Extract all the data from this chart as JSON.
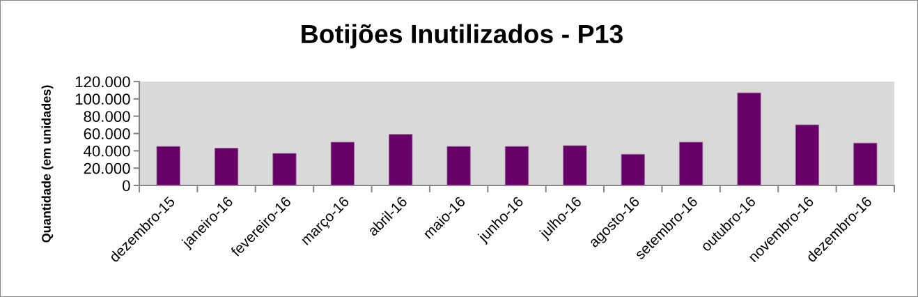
{
  "chart_data": {
    "type": "bar",
    "title": "Botijões Inutilizados - P13",
    "ylabel": "Quantidade (em unidades)",
    "categories": [
      "dezembro-15",
      "janeiro-16",
      "fevereiro-16",
      "março-16",
      "abril-16",
      "maio-16",
      "junho-16",
      "julho-16",
      "agosto-16",
      "setembro-16",
      "outubro-16",
      "novembro-16",
      "dezembro-16"
    ],
    "values": [
      45000,
      43000,
      37000,
      50000,
      59000,
      45000,
      45000,
      46000,
      36000,
      50000,
      107000,
      70000,
      49000
    ],
    "color": "#660066",
    "ylim": [
      0,
      120000
    ],
    "yticks": [
      0,
      {
        "value": 20000,
        "label": "20.000"
      },
      {
        "value": 40000,
        "label": "40.000"
      },
      {
        "value": 60000,
        "label": "60.000"
      },
      {
        "value": 80000,
        "label": "80.000"
      },
      {
        "value": 100000,
        "label": "100.000"
      },
      {
        "value": 120000,
        "label": "120.000"
      }
    ]
  }
}
